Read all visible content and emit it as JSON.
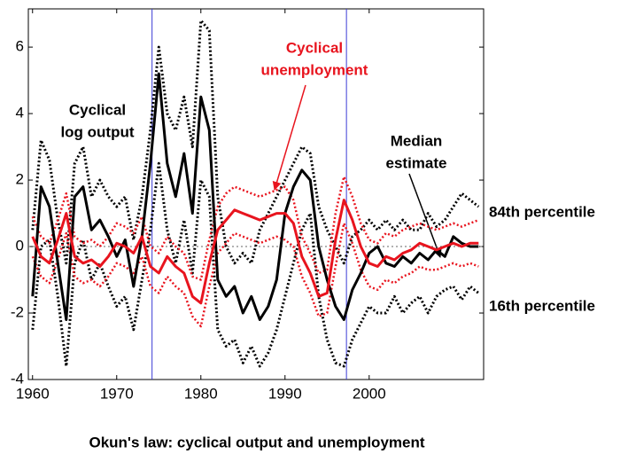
{
  "chart_data": {
    "type": "line",
    "x_title": "Okun's law: cyclical output and unemployment",
    "x": [
      1960,
      1961,
      1962,
      1963,
      1964,
      1965,
      1966,
      1967,
      1968,
      1969,
      1970,
      1971,
      1972,
      1973,
      1974,
      1975,
      1976,
      1977,
      1978,
      1979,
      1980,
      1981,
      1982,
      1983,
      1984,
      1985,
      1986,
      1987,
      1988,
      1989,
      1990,
      1991,
      1992,
      1993,
      1994,
      1995,
      1996,
      1997,
      1998,
      1999,
      2000,
      2001,
      2002,
      2003,
      2004,
      2005,
      2006,
      2007,
      2008,
      2009,
      2010,
      2011,
      2012,
      2013
    ],
    "xlim": [
      1959.5,
      2013.6
    ],
    "xticks": [
      1960,
      1970,
      1980,
      1990,
      2000
    ],
    "ylim": [
      -4,
      7.15
    ],
    "yticks": [
      -4,
      -2,
      0,
      2,
      4,
      6
    ],
    "series": [
      {
        "color": "#000000",
        "style": "dotted",
        "width": 3,
        "values": [
          0.5,
          3.2,
          2.6,
          0.8,
          -0.5,
          2.5,
          3.0,
          1.5,
          2.0,
          1.5,
          1.2,
          1.5,
          0.2,
          1.5,
          3.5,
          6.0,
          4.0,
          3.5,
          4.5,
          3.0,
          6.8,
          6.5,
          1.5,
          0.0,
          -0.5,
          -0.2,
          -0.5,
          0.5,
          1.0,
          1.5,
          2.0,
          2.5,
          3.0,
          2.8,
          1.2,
          0.5,
          0.0,
          -0.5,
          0.3,
          0.5,
          0.8,
          0.5,
          0.8,
          0.5,
          0.8,
          0.5,
          0.5,
          1.0,
          0.6,
          0.8,
          1.2,
          1.6,
          1.4,
          1.2
        ]
      },
      {
        "color": "#000000",
        "style": "dotted",
        "width": 3,
        "values": [
          -2.5,
          0.0,
          0.2,
          -1.5,
          -3.6,
          -0.5,
          0.2,
          -1.0,
          -0.5,
          -1.2,
          -1.8,
          -1.5,
          -2.5,
          -1.0,
          0.5,
          2.5,
          0.5,
          -0.5,
          0.8,
          -0.8,
          2.0,
          1.5,
          -2.5,
          -3.0,
          -2.8,
          -3.5,
          -3.0,
          -3.6,
          -3.2,
          -2.5,
          -1.5,
          -0.5,
          0.5,
          1.0,
          -1.5,
          -2.8,
          -3.5,
          -3.6,
          -2.8,
          -2.3,
          -1.8,
          -2.0,
          -2.0,
          -1.5,
          -2.0,
          -1.7,
          -1.5,
          -2.0,
          -1.5,
          -1.3,
          -1.2,
          -1.6,
          -1.2,
          -1.4
        ]
      },
      {
        "color": "#e8141e",
        "style": "dotted",
        "width": 2.5,
        "values": [
          0.9,
          0.3,
          0.1,
          0.8,
          1.6,
          0.3,
          0.1,
          0.2,
          0.0,
          0.3,
          0.7,
          0.6,
          0.4,
          0.9,
          0.0,
          -0.2,
          0.3,
          0.0,
          -0.2,
          -0.9,
          -1.0,
          0.2,
          1.2,
          1.6,
          1.8,
          1.7,
          1.6,
          1.5,
          1.6,
          1.7,
          1.8,
          1.4,
          0.3,
          -0.2,
          -0.8,
          -0.7,
          1.0,
          2.1,
          1.5,
          0.7,
          0.2,
          0.1,
          0.4,
          0.3,
          0.5,
          0.6,
          0.7,
          0.6,
          0.5,
          0.6,
          0.7,
          0.6,
          0.7,
          0.8
        ]
      },
      {
        "color": "#e8141e",
        "style": "dotted",
        "width": 2.5,
        "values": [
          -0.3,
          -0.9,
          -1.1,
          -0.4,
          0.4,
          -0.9,
          -1.1,
          -1.0,
          -1.2,
          -0.9,
          -0.5,
          -0.6,
          -0.8,
          -0.3,
          -1.2,
          -1.4,
          -0.9,
          -1.2,
          -1.4,
          -2.1,
          -2.4,
          -1.2,
          -0.2,
          0.1,
          0.4,
          0.3,
          0.2,
          0.1,
          0.2,
          0.3,
          0.2,
          0.0,
          -0.9,
          -1.4,
          -2.1,
          -2.0,
          -0.6,
          0.7,
          0.1,
          -0.7,
          -1.2,
          -1.3,
          -1.0,
          -1.1,
          -0.9,
          -0.8,
          -0.6,
          -0.7,
          -0.7,
          -0.6,
          -0.5,
          -0.6,
          -0.5,
          -0.6
        ]
      },
      {
        "color": "#000000",
        "style": "solid",
        "width": 3,
        "values": [
          -1.5,
          1.8,
          1.2,
          -0.5,
          -2.2,
          1.5,
          1.8,
          0.5,
          0.8,
          0.3,
          -0.3,
          0.2,
          -1.2,
          0.3,
          2.5,
          5.2,
          2.5,
          1.5,
          2.8,
          1.0,
          4.5,
          3.5,
          -1.0,
          -1.5,
          -1.2,
          -2.0,
          -1.5,
          -2.2,
          -1.8,
          -1.0,
          1.0,
          1.8,
          2.3,
          2.0,
          0.0,
          -1.0,
          -1.8,
          -2.2,
          -1.3,
          -0.8,
          -0.2,
          0.0,
          -0.5,
          -0.6,
          -0.3,
          -0.5,
          -0.2,
          -0.4,
          -0.1,
          -0.3,
          0.3,
          0.1,
          0.0,
          0.0
        ]
      },
      {
        "color": "#e8141e",
        "style": "solid",
        "width": 3,
        "values": [
          0.3,
          -0.3,
          -0.5,
          0.2,
          1.0,
          -0.3,
          -0.5,
          -0.4,
          -0.6,
          -0.3,
          0.1,
          0.0,
          -0.2,
          0.3,
          -0.6,
          -0.8,
          -0.3,
          -0.6,
          -0.8,
          -1.5,
          -1.7,
          -0.5,
          0.5,
          0.8,
          1.1,
          1.0,
          0.9,
          0.8,
          0.9,
          1.0,
          1.0,
          0.7,
          -0.3,
          -0.8,
          -1.5,
          -1.4,
          0.2,
          1.4,
          0.8,
          0.0,
          -0.5,
          -0.6,
          -0.3,
          -0.4,
          -0.2,
          -0.1,
          0.1,
          0.0,
          -0.1,
          0.0,
          0.1,
          0.0,
          0.1,
          0.1
        ]
      }
    ],
    "vlines": [
      1974.2,
      1997.3
    ],
    "vline_color": "#3b3bd6",
    "annotations": [
      {
        "lines": [
          "Cyclical",
          "log output"
        ],
        "color": "#000000"
      },
      {
        "lines": [
          "Cyclical",
          "unemployment"
        ],
        "color": "#e8141e"
      },
      {
        "lines": [
          "Median",
          "estimate"
        ],
        "color": "#000000"
      },
      {
        "lines": [
          "84th percentile"
        ],
        "color": "#000000"
      },
      {
        "lines": [
          "16th percentile"
        ],
        "color": "#000000"
      }
    ]
  }
}
